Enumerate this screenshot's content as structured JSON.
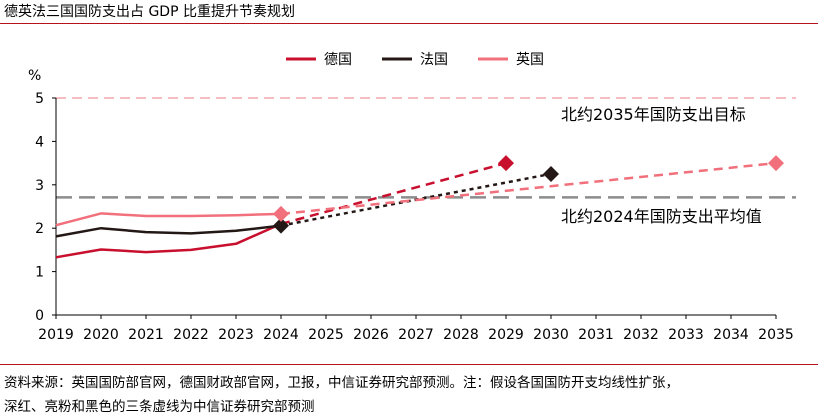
{
  "title": "德英法三国国防支出占 GDP 比重提升节奏规划",
  "source_line1": "资料来源：英国国防部官网，德国财政部官网，卫报，中信证券研究部预测。注：假设各国国防开支均线性扩张，",
  "source_line2": "深红、亮粉和黑色的三条虚线为中信证券研究部预测",
  "chart_data": {
    "type": "line",
    "ylabel": "%",
    "ylim": [
      0,
      5
    ],
    "yticks": [
      "0",
      "1",
      "2",
      "3",
      "4",
      "5"
    ],
    "xlim": [
      2019,
      2035
    ],
    "categories": [
      "2019",
      "2020",
      "2021",
      "2022",
      "2023",
      "2024",
      "2025",
      "2026",
      "2027",
      "2028",
      "2029",
      "2030",
      "2031",
      "2032",
      "2033",
      "2034",
      "2035"
    ],
    "legend": [
      "德国",
      "法国",
      "英国"
    ],
    "colors": {
      "germany": "#c8102e",
      "france": "#231815",
      "uk": "#f1707c",
      "ref5": "#f4a9ae",
      "ref_avg": "#8c8c8c"
    },
    "series": [
      {
        "name": "德国",
        "key": "germany",
        "actual": {
          "x": [
            2019,
            2020,
            2021,
            2022,
            2023,
            2024
          ],
          "y": [
            1.33,
            1.51,
            1.45,
            1.5,
            1.64,
            2.1
          ]
        },
        "forecast": {
          "x": [
            2024,
            2029
          ],
          "y": [
            2.1,
            3.5
          ]
        }
      },
      {
        "name": "法国",
        "key": "france",
        "actual": {
          "x": [
            2019,
            2020,
            2021,
            2022,
            2023,
            2024
          ],
          "y": [
            1.81,
            2.0,
            1.91,
            1.88,
            1.94,
            2.06
          ]
        },
        "forecast": {
          "x": [
            2024,
            2030
          ],
          "y": [
            2.06,
            3.25
          ]
        }
      },
      {
        "name": "英国",
        "key": "uk",
        "actual": {
          "x": [
            2019,
            2020,
            2021,
            2022,
            2023,
            2024
          ],
          "y": [
            2.07,
            2.34,
            2.28,
            2.28,
            2.3,
            2.33
          ]
        },
        "forecast": {
          "x": [
            2024,
            2035
          ],
          "y": [
            2.33,
            3.5
          ]
        }
      }
    ],
    "markers": [
      {
        "series": "germany",
        "x": 2029,
        "y": 3.5
      },
      {
        "series": "france",
        "x": 2030,
        "y": 3.25
      },
      {
        "series": "uk",
        "x": 2035,
        "y": 3.5
      },
      {
        "series": "france",
        "x": 2024,
        "y": 2.06
      },
      {
        "series": "uk",
        "x": 2024,
        "y": 2.33
      }
    ],
    "reference_lines": [
      {
        "y": 5.0,
        "key": "ref5"
      },
      {
        "y": 2.71,
        "key": "ref_avg"
      }
    ],
    "annotations": [
      {
        "text": "北约2035年国防支出目标"
      },
      {
        "text": "北约2024年国防支出平均值"
      }
    ]
  }
}
